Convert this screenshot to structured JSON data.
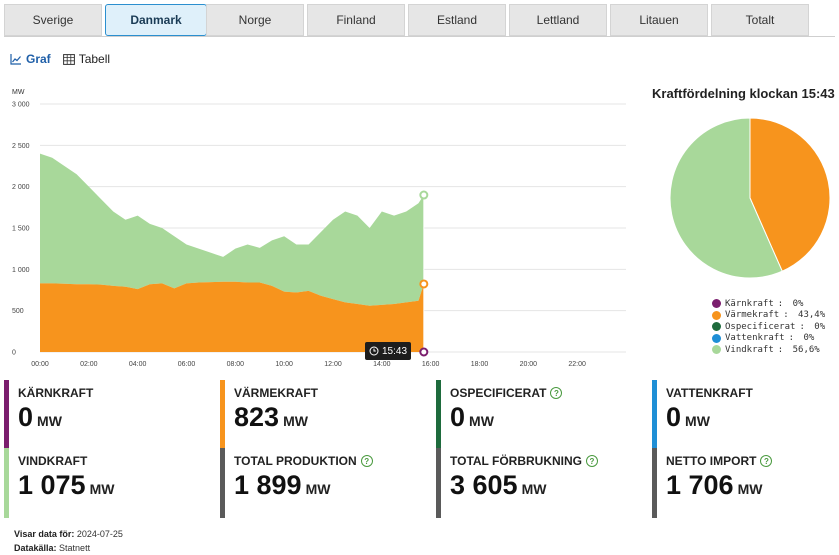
{
  "tabs": [
    "Sverige",
    "Danmark",
    "Norge",
    "Finland",
    "Estland",
    "Lettland",
    "Litauen",
    "Totalt"
  ],
  "active_tab": 1,
  "view": {
    "graph_label": "Graf",
    "table_label": "Tabell"
  },
  "chart_data": {
    "type": "area",
    "ylabel": "MW",
    "ylim": [
      0,
      3000
    ],
    "yticks": [
      "3 000",
      "2 500",
      "2 000",
      "1 500",
      "1 000",
      "500",
      "0"
    ],
    "ytick_values": [
      3000,
      2500,
      2000,
      1500,
      1000,
      500,
      0
    ],
    "xticks": [
      "00:00",
      "02:00",
      "04:00",
      "06:00",
      "08:00",
      "10:00",
      "12:00",
      "14:00",
      "16:00",
      "18:00",
      "20:00",
      "22:00"
    ],
    "xlim_hours": [
      0,
      24
    ],
    "x_hours": [
      0,
      0.5,
      1,
      1.5,
      2,
      2.5,
      3,
      3.5,
      4,
      4.5,
      5,
      5.5,
      6,
      6.5,
      7,
      7.5,
      8,
      8.5,
      9,
      9.5,
      10,
      10.5,
      11,
      11.5,
      12,
      12.5,
      13,
      13.5,
      14,
      14.5,
      15,
      15.5,
      15.72
    ],
    "series": [
      {
        "name": "Värmekraft",
        "color": "#f7941d",
        "values": [
          830,
          830,
          825,
          820,
          820,
          815,
          800,
          790,
          760,
          820,
          830,
          770,
          830,
          840,
          845,
          850,
          850,
          840,
          840,
          800,
          730,
          720,
          740,
          680,
          640,
          600,
          580,
          560,
          570,
          580,
          600,
          620,
          823
        ]
      },
      {
        "name": "Vindkraft",
        "color": "#a8d89a",
        "values": [
          2400,
          2350,
          2250,
          2150,
          2000,
          1850,
          1700,
          1600,
          1650,
          1550,
          1500,
          1400,
          1300,
          1250,
          1200,
          1150,
          1250,
          1300,
          1260,
          1350,
          1400,
          1300,
          1300,
          1450,
          1600,
          1700,
          1650,
          1500,
          1700,
          1650,
          1700,
          1800,
          1899
        ]
      }
    ],
    "current_time": "15:43"
  },
  "pie": {
    "title": "Kraftfördelning klockan 15:43",
    "slices": [
      {
        "label": "Kärnkraft",
        "percent": "0%",
        "value": 0,
        "color": "#7b1e6e"
      },
      {
        "label": "Värmekraft",
        "percent": "43,4%",
        "value": 43.4,
        "color": "#f7941d"
      },
      {
        "label": "Ospecificerat",
        "percent": "0%",
        "value": 0,
        "color": "#1e6b3d"
      },
      {
        "label": "Vattenkraft",
        "percent": "0%",
        "value": 0,
        "color": "#1f8fd6"
      },
      {
        "label": "Vindkraft",
        "percent": "56,6%",
        "value": 56.6,
        "color": "#a8d89a"
      }
    ]
  },
  "stats": [
    {
      "label": "KÄRNKRAFT",
      "value": "0",
      "unit": "MW",
      "color": "#7b1e6e",
      "help": false
    },
    {
      "label": "VÄRMEKRAFT",
      "value": "823",
      "unit": "MW",
      "color": "#f7941d",
      "help": false
    },
    {
      "label": "OSPECIFICERAT",
      "value": "0",
      "unit": "MW",
      "color": "#1e6b3d",
      "help": true
    },
    {
      "label": "VATTENKRAFT",
      "value": "0",
      "unit": "MW",
      "color": "#1f8fd6",
      "help": false
    },
    {
      "label": "VINDKRAFT",
      "value": "1 075",
      "unit": "MW",
      "color": "#a8d89a",
      "help": false
    },
    {
      "label": "TOTAL PRODUKTION",
      "value": "1 899",
      "unit": "MW",
      "color": "#5a5a5a",
      "help": true
    },
    {
      "label": "TOTAL FÖRBRUKNING",
      "value": "3 605",
      "unit": "MW",
      "color": "#5a5a5a",
      "help": true
    },
    {
      "label": "NETTO IMPORT",
      "value": "1 706",
      "unit": "MW",
      "color": "#5a5a5a",
      "help": true
    }
  ],
  "footer": {
    "date_label": "Visar data för:",
    "date_value": "2024-07-25",
    "source_label": "Datakälla:",
    "source_value": "Statnett"
  }
}
